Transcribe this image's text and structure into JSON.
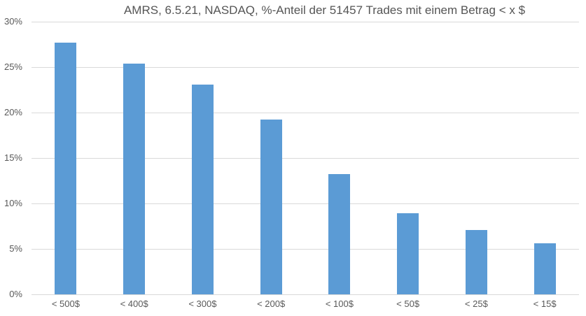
{
  "chart_data": {
    "type": "bar",
    "title": "AMRS, 6.5.21, NASDAQ, %-Anteil der 51457 Trades mit einem Betrag < x $",
    "categories": [
      "< 500$",
      "< 400$",
      "< 300$",
      "< 200$",
      "< 100$",
      "< 50$",
      "< 25$",
      "< 15$"
    ],
    "values": [
      27.7,
      25.4,
      23.1,
      19.2,
      13.2,
      8.9,
      7.1,
      5.6
    ],
    "unit": "%",
    "ylim": [
      0,
      30
    ],
    "ytick_step": 5,
    "ytick_labels": [
      "0%",
      "5%",
      "10%",
      "15%",
      "20%",
      "25%",
      "30%"
    ],
    "xlabel": "",
    "ylabel": "",
    "grid": true,
    "legend": false,
    "colors": {
      "bar": "#5b9bd5",
      "gridline": "#d9d9d9",
      "axis_text": "#595959",
      "title_text": "#555555",
      "background": "#ffffff"
    }
  }
}
